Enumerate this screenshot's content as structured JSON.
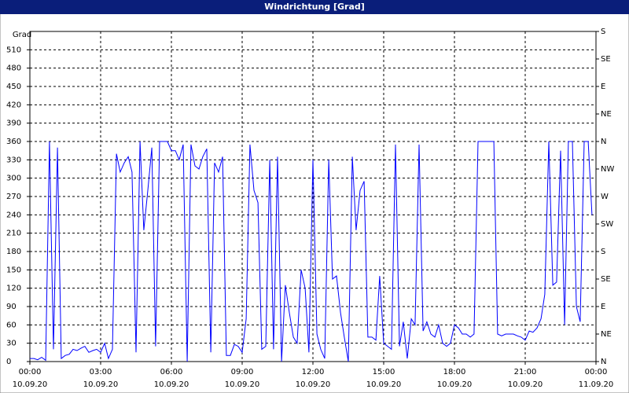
{
  "chart_data": {
    "type": "line",
    "title": "Windrichtung [Grad]",
    "ylabel": "Grad",
    "x": [
      0,
      0.17,
      0.33,
      0.5,
      0.67,
      0.83,
      1,
      1.17,
      1.33,
      1.5,
      1.67,
      1.83,
      2,
      2.17,
      2.33,
      2.5,
      2.67,
      2.83,
      3,
      3.17,
      3.33,
      3.5,
      3.67,
      3.83,
      4,
      4.17,
      4.33,
      4.5,
      4.67,
      4.83,
      5,
      5.17,
      5.33,
      5.5,
      5.67,
      5.83,
      6,
      6.17,
      6.33,
      6.5,
      6.67,
      6.83,
      7,
      7.17,
      7.33,
      7.5,
      7.67,
      7.83,
      8,
      8.17,
      8.33,
      8.5,
      8.67,
      8.83,
      9,
      9.17,
      9.33,
      9.5,
      9.67,
      9.83,
      10,
      10.17,
      10.33,
      10.5,
      10.67,
      10.83,
      11,
      11.17,
      11.33,
      11.5,
      11.67,
      11.83,
      12,
      12.17,
      12.33,
      12.5,
      12.67,
      12.83,
      13,
      13.17,
      13.33,
      13.5,
      13.67,
      13.83,
      14,
      14.17,
      14.33,
      14.5,
      14.67,
      14.83,
      15,
      15.17,
      15.33,
      15.5,
      15.67,
      15.83,
      16,
      16.17,
      16.33,
      16.5,
      16.67,
      16.83,
      17,
      17.17,
      17.33,
      17.5,
      17.67,
      17.83,
      18,
      18.17,
      18.33,
      18.5,
      18.67,
      18.83,
      19,
      19.17,
      19.33,
      19.5,
      19.67,
      19.83,
      20,
      20.17,
      20.33,
      20.5,
      20.67,
      20.83,
      21,
      21.17,
      21.33,
      21.5,
      21.67,
      21.83,
      22,
      22.17,
      22.33,
      22.5,
      22.67,
      22.83,
      23,
      23.17,
      23.33,
      23.5,
      23.67,
      23.83
    ],
    "series": [
      {
        "name": "Windrichtung",
        "color": "#0000ff",
        "values": [
          5,
          5,
          3,
          7,
          2,
          360,
          20,
          350,
          5,
          10,
          12,
          20,
          18,
          22,
          25,
          15,
          18,
          20,
          15,
          30,
          5,
          20,
          340,
          310,
          325,
          335,
          310,
          15,
          360,
          215,
          280,
          350,
          25,
          360,
          360,
          360,
          345,
          345,
          330,
          355,
          0,
          355,
          320,
          315,
          335,
          348,
          15,
          325,
          310,
          335,
          10,
          10,
          28,
          25,
          15,
          70,
          355,
          280,
          260,
          20,
          25,
          330,
          20,
          335,
          0,
          125,
          80,
          40,
          30,
          150,
          120,
          15,
          330,
          45,
          20,
          5,
          330,
          135,
          140,
          80,
          40,
          0,
          335,
          215,
          280,
          295,
          40,
          40,
          35,
          140,
          30,
          25,
          20,
          355,
          25,
          65,
          5,
          70,
          60,
          355,
          50,
          65,
          45,
          40,
          60,
          30,
          25,
          30,
          60,
          55,
          45,
          45,
          40,
          45,
          360,
          360,
          360,
          360,
          360,
          45,
          42,
          45,
          45,
          45,
          42,
          40,
          35,
          50,
          48,
          55,
          70,
          110,
          360,
          125,
          130,
          345,
          60,
          360,
          360,
          90,
          65,
          360,
          360,
          240
        ]
      }
    ],
    "xlim": [
      0,
      24
    ],
    "xticks": [
      {
        "value": 0,
        "label": "00:00",
        "date": "10.09.20"
      },
      {
        "value": 3,
        "label": "03:00",
        "date": "10.09.20"
      },
      {
        "value": 6,
        "label": "06:00",
        "date": "10.09.20"
      },
      {
        "value": 9,
        "label": "09:00",
        "date": "10.09.20"
      },
      {
        "value": 12,
        "label": "12:00",
        "date": "10.09.20"
      },
      {
        "value": 15,
        "label": "15:00",
        "date": "10.09.20"
      },
      {
        "value": 18,
        "label": "18:00",
        "date": "10.09.20"
      },
      {
        "value": 21,
        "label": "21:00",
        "date": "10.09.20"
      },
      {
        "value": 24,
        "label": "00:00",
        "date": "11.09.20"
      }
    ],
    "ylim": [
      0,
      540
    ],
    "yticks": [
      0,
      30,
      60,
      90,
      120,
      150,
      180,
      210,
      240,
      270,
      300,
      330,
      360,
      390,
      420,
      450,
      480,
      510
    ],
    "y2lim": [
      0,
      540
    ],
    "y2ticks": [
      {
        "value": 0,
        "label": "N"
      },
      {
        "value": 45,
        "label": "NE"
      },
      {
        "value": 90,
        "label": "E"
      },
      {
        "value": 135,
        "label": "SE"
      },
      {
        "value": 180,
        "label": "S"
      },
      {
        "value": 225,
        "label": "SW"
      },
      {
        "value": 270,
        "label": "W"
      },
      {
        "value": 315,
        "label": "NW"
      },
      {
        "value": 360,
        "label": "N"
      },
      {
        "value": 405,
        "label": "NE"
      },
      {
        "value": 450,
        "label": "E"
      },
      {
        "value": 495,
        "label": "SE"
      },
      {
        "value": 540,
        "label": "S"
      }
    ],
    "grid": true
  }
}
